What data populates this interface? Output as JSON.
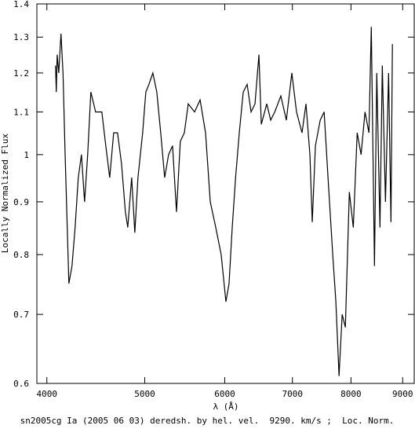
{
  "chart_data": {
    "type": "line",
    "caption": "sn2005cg Ia (2005 06 03) deredsh. by hel. vel.  9290. km/s ;  Loc. Norm.",
    "x_label": "λ (Å)",
    "y_label": "Locally Normalized Flux",
    "x_log": true,
    "y_log": true,
    "xlim": [
      3910,
      9240
    ],
    "ylim": [
      0.6,
      1.4
    ],
    "xticks": [
      4000,
      5000,
      6000,
      7000,
      8000,
      9000
    ],
    "yticks": [
      0.6,
      0.7,
      0.8,
      0.9,
      1,
      1.1,
      1.2,
      1.3,
      1.4
    ],
    "x": [
      4080,
      4087,
      4095,
      4110,
      4131,
      4150,
      4170,
      4206,
      4236,
      4266,
      4297,
      4328,
      4359,
      4390,
      4422,
      4470,
      4534,
      4575,
      4616,
      4658,
      4699,
      4742,
      4784,
      4810,
      4853,
      4888,
      4923,
      4976,
      5012,
      5048,
      5093,
      5139,
      5185,
      5232,
      5279,
      5327,
      5375,
      5422,
      5472,
      5521,
      5601,
      5672,
      5743,
      5805,
      5878,
      5951,
      6016,
      6059,
      6103,
      6150,
      6202,
      6258,
      6314,
      6371,
      6428,
      6486,
      6521,
      6603,
      6662,
      6724,
      6818,
      6904,
      6991,
      7066,
      7155,
      7220,
      7285,
      7324,
      7377,
      7458,
      7525,
      7592,
      7674,
      7729,
      7785,
      7841,
      7898,
      7970,
      8042,
      8114,
      8186,
      8260,
      8334,
      8379,
      8440,
      8484,
      8546,
      8592,
      8654,
      8716,
      8763,
      8792
    ],
    "series": [
      {
        "name": "sn2005cg",
        "color": "#000000",
        "values": [
          1.22,
          1.15,
          1.25,
          1.2,
          1.31,
          1.2,
          1.0,
          0.75,
          0.78,
          0.85,
          0.95,
          1.0,
          0.9,
          1.0,
          1.15,
          1.1,
          1.1,
          1.02,
          0.95,
          1.05,
          1.05,
          0.98,
          0.88,
          0.85,
          0.95,
          0.84,
          0.95,
          1.05,
          1.15,
          1.17,
          1.2,
          1.15,
          1.05,
          0.95,
          1.0,
          1.02,
          0.88,
          1.03,
          1.05,
          1.12,
          1.1,
          1.13,
          1.05,
          0.9,
          0.85,
          0.8,
          0.72,
          0.75,
          0.85,
          0.95,
          1.05,
          1.15,
          1.17,
          1.1,
          1.12,
          1.25,
          1.07,
          1.12,
          1.08,
          1.1,
          1.14,
          1.08,
          1.2,
          1.1,
          1.05,
          1.12,
          1.0,
          0.86,
          1.02,
          1.08,
          1.1,
          0.95,
          0.8,
          0.72,
          0.61,
          0.7,
          0.68,
          0.92,
          0.85,
          1.05,
          1.0,
          1.1,
          1.05,
          1.33,
          0.78,
          1.2,
          0.85,
          1.22,
          0.9,
          1.2,
          0.86,
          1.28
        ]
      }
    ]
  }
}
